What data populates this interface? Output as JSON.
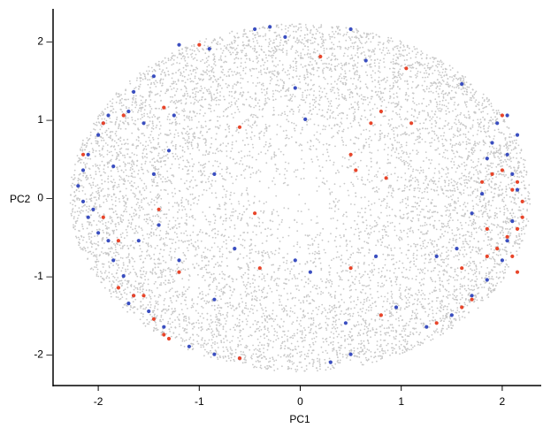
{
  "chart_data": {
    "type": "scatter",
    "title": "",
    "xlabel": "PC1",
    "ylabel": "PC2",
    "xlim": [
      -2.45,
      2.4
    ],
    "ylim": [
      -2.4,
      2.45
    ],
    "x_ticks": [
      -2,
      -1,
      0,
      1,
      2
    ],
    "x_tick_labels": [
      "-2",
      "-1",
      "0",
      "1",
      "2"
    ],
    "y_ticks": [
      2,
      1,
      0,
      -1,
      -2
    ],
    "y_tick_labels": [
      "2 –",
      "1 –",
      "0 –",
      "-1 –",
      "-2 –"
    ],
    "grid": false,
    "legend": "none",
    "colors": {
      "background_points": "#c8c8c8",
      "blue_points": "#3a4ec0",
      "red_points": "#e8452a",
      "axis": "#000000"
    },
    "background_cloud": {
      "description_shape": "filled ellipse of gray points",
      "center": [
        0.0,
        0.0
      ],
      "x_radius": 2.28,
      "y_radius": 2.22
    },
    "series": [
      {
        "color": "blue",
        "points": [
          [
            -0.45,
            2.15
          ],
          [
            -0.3,
            2.18
          ],
          [
            -0.15,
            2.05
          ],
          [
            0.5,
            2.15
          ],
          [
            -1.2,
            1.95
          ],
          [
            -1.45,
            1.55
          ],
          [
            -1.65,
            1.35
          ],
          [
            -1.9,
            1.05
          ],
          [
            -2.0,
            0.8
          ],
          [
            -2.1,
            0.55
          ],
          [
            -2.15,
            0.35
          ],
          [
            -2.2,
            0.15
          ],
          [
            -2.15,
            -0.05
          ],
          [
            -2.1,
            -0.25
          ],
          [
            -2.0,
            -0.45
          ],
          [
            -1.9,
            -0.55
          ],
          [
            -1.85,
            -0.8
          ],
          [
            -1.75,
            -1.0
          ],
          [
            -1.65,
            -1.25
          ],
          [
            -1.5,
            -1.45
          ],
          [
            -1.35,
            -1.65
          ],
          [
            -1.1,
            -1.9
          ],
          [
            -0.85,
            -2.0
          ],
          [
            -0.6,
            -2.05
          ],
          [
            0.3,
            -2.1
          ],
          [
            0.5,
            -2.0
          ],
          [
            0.45,
            -1.6
          ],
          [
            -0.05,
            1.4
          ],
          [
            0.05,
            1.0
          ],
          [
            0.1,
            -0.95
          ],
          [
            -0.05,
            -0.8
          ],
          [
            -0.85,
            0.3
          ],
          [
            -0.65,
            -0.65
          ],
          [
            -0.85,
            -1.3
          ],
          [
            -1.2,
            -0.8
          ],
          [
            -1.4,
            -0.35
          ],
          [
            -1.3,
            0.6
          ],
          [
            -1.25,
            1.05
          ],
          [
            -1.55,
            0.95
          ],
          [
            -1.85,
            0.4
          ],
          [
            0.75,
            -0.75
          ],
          [
            0.95,
            -1.4
          ],
          [
            1.25,
            -1.65
          ],
          [
            1.35,
            -0.75
          ],
          [
            1.55,
            -0.65
          ],
          [
            1.7,
            -0.2
          ],
          [
            1.8,
            0.05
          ],
          [
            1.85,
            0.5
          ],
          [
            1.9,
            0.7
          ],
          [
            1.95,
            0.95
          ],
          [
            2.05,
            0.55
          ],
          [
            2.1,
            0.3
          ],
          [
            2.15,
            0.1
          ],
          [
            2.1,
            -0.3
          ],
          [
            2.05,
            -0.55
          ],
          [
            2.0,
            -0.8
          ],
          [
            1.85,
            -1.05
          ],
          [
            1.7,
            -1.25
          ],
          [
            1.5,
            -1.5
          ],
          [
            1.6,
            1.45
          ],
          [
            2.05,
            1.05
          ],
          [
            2.15,
            0.8
          ],
          [
            0.65,
            1.75
          ],
          [
            -0.9,
            1.9
          ],
          [
            -1.7,
            1.1
          ],
          [
            -1.95,
            0.95
          ],
          [
            -2.05,
            -0.15
          ],
          [
            -1.6,
            -0.55
          ],
          [
            -1.7,
            -1.35
          ],
          [
            -1.45,
            0.3
          ]
        ]
      },
      {
        "color": "red",
        "points": [
          [
            -1.0,
            1.95
          ],
          [
            -1.35,
            1.15
          ],
          [
            -1.75,
            1.05
          ],
          [
            -1.95,
            0.95
          ],
          [
            -2.15,
            0.55
          ],
          [
            -1.4,
            -0.15
          ],
          [
            -1.95,
            -0.25
          ],
          [
            -1.8,
            -0.55
          ],
          [
            -1.8,
            -1.15
          ],
          [
            -1.65,
            -1.25
          ],
          [
            -1.55,
            -1.25
          ],
          [
            -1.45,
            -1.55
          ],
          [
            -1.35,
            -1.75
          ],
          [
            -1.3,
            -1.8
          ],
          [
            -1.2,
            -0.95
          ],
          [
            -0.6,
            0.9
          ],
          [
            -0.45,
            -0.2
          ],
          [
            -0.4,
            -0.9
          ],
          [
            -0.6,
            -2.05
          ],
          [
            0.2,
            1.8
          ],
          [
            0.5,
            0.55
          ],
          [
            0.55,
            0.35
          ],
          [
            0.5,
            -0.9
          ],
          [
            0.7,
            0.95
          ],
          [
            0.8,
            1.1
          ],
          [
            0.85,
            0.25
          ],
          [
            0.8,
            -1.5
          ],
          [
            1.1,
            0.95
          ],
          [
            1.05,
            1.65
          ],
          [
            1.35,
            -1.6
          ],
          [
            1.6,
            -0.9
          ],
          [
            1.7,
            -1.3
          ],
          [
            1.85,
            -0.75
          ],
          [
            1.9,
            0.3
          ],
          [
            2.0,
            0.35
          ],
          [
            2.1,
            0.1
          ],
          [
            2.15,
            0.2
          ],
          [
            2.2,
            -0.05
          ],
          [
            2.2,
            -0.25
          ],
          [
            2.15,
            -0.4
          ],
          [
            2.05,
            -0.5
          ],
          [
            1.95,
            -0.65
          ],
          [
            2.1,
            -0.75
          ],
          [
            2.15,
            -0.95
          ],
          [
            1.85,
            -0.4
          ],
          [
            1.8,
            0.2
          ],
          [
            2.0,
            1.05
          ],
          [
            1.6,
            -1.4
          ]
        ]
      }
    ]
  }
}
